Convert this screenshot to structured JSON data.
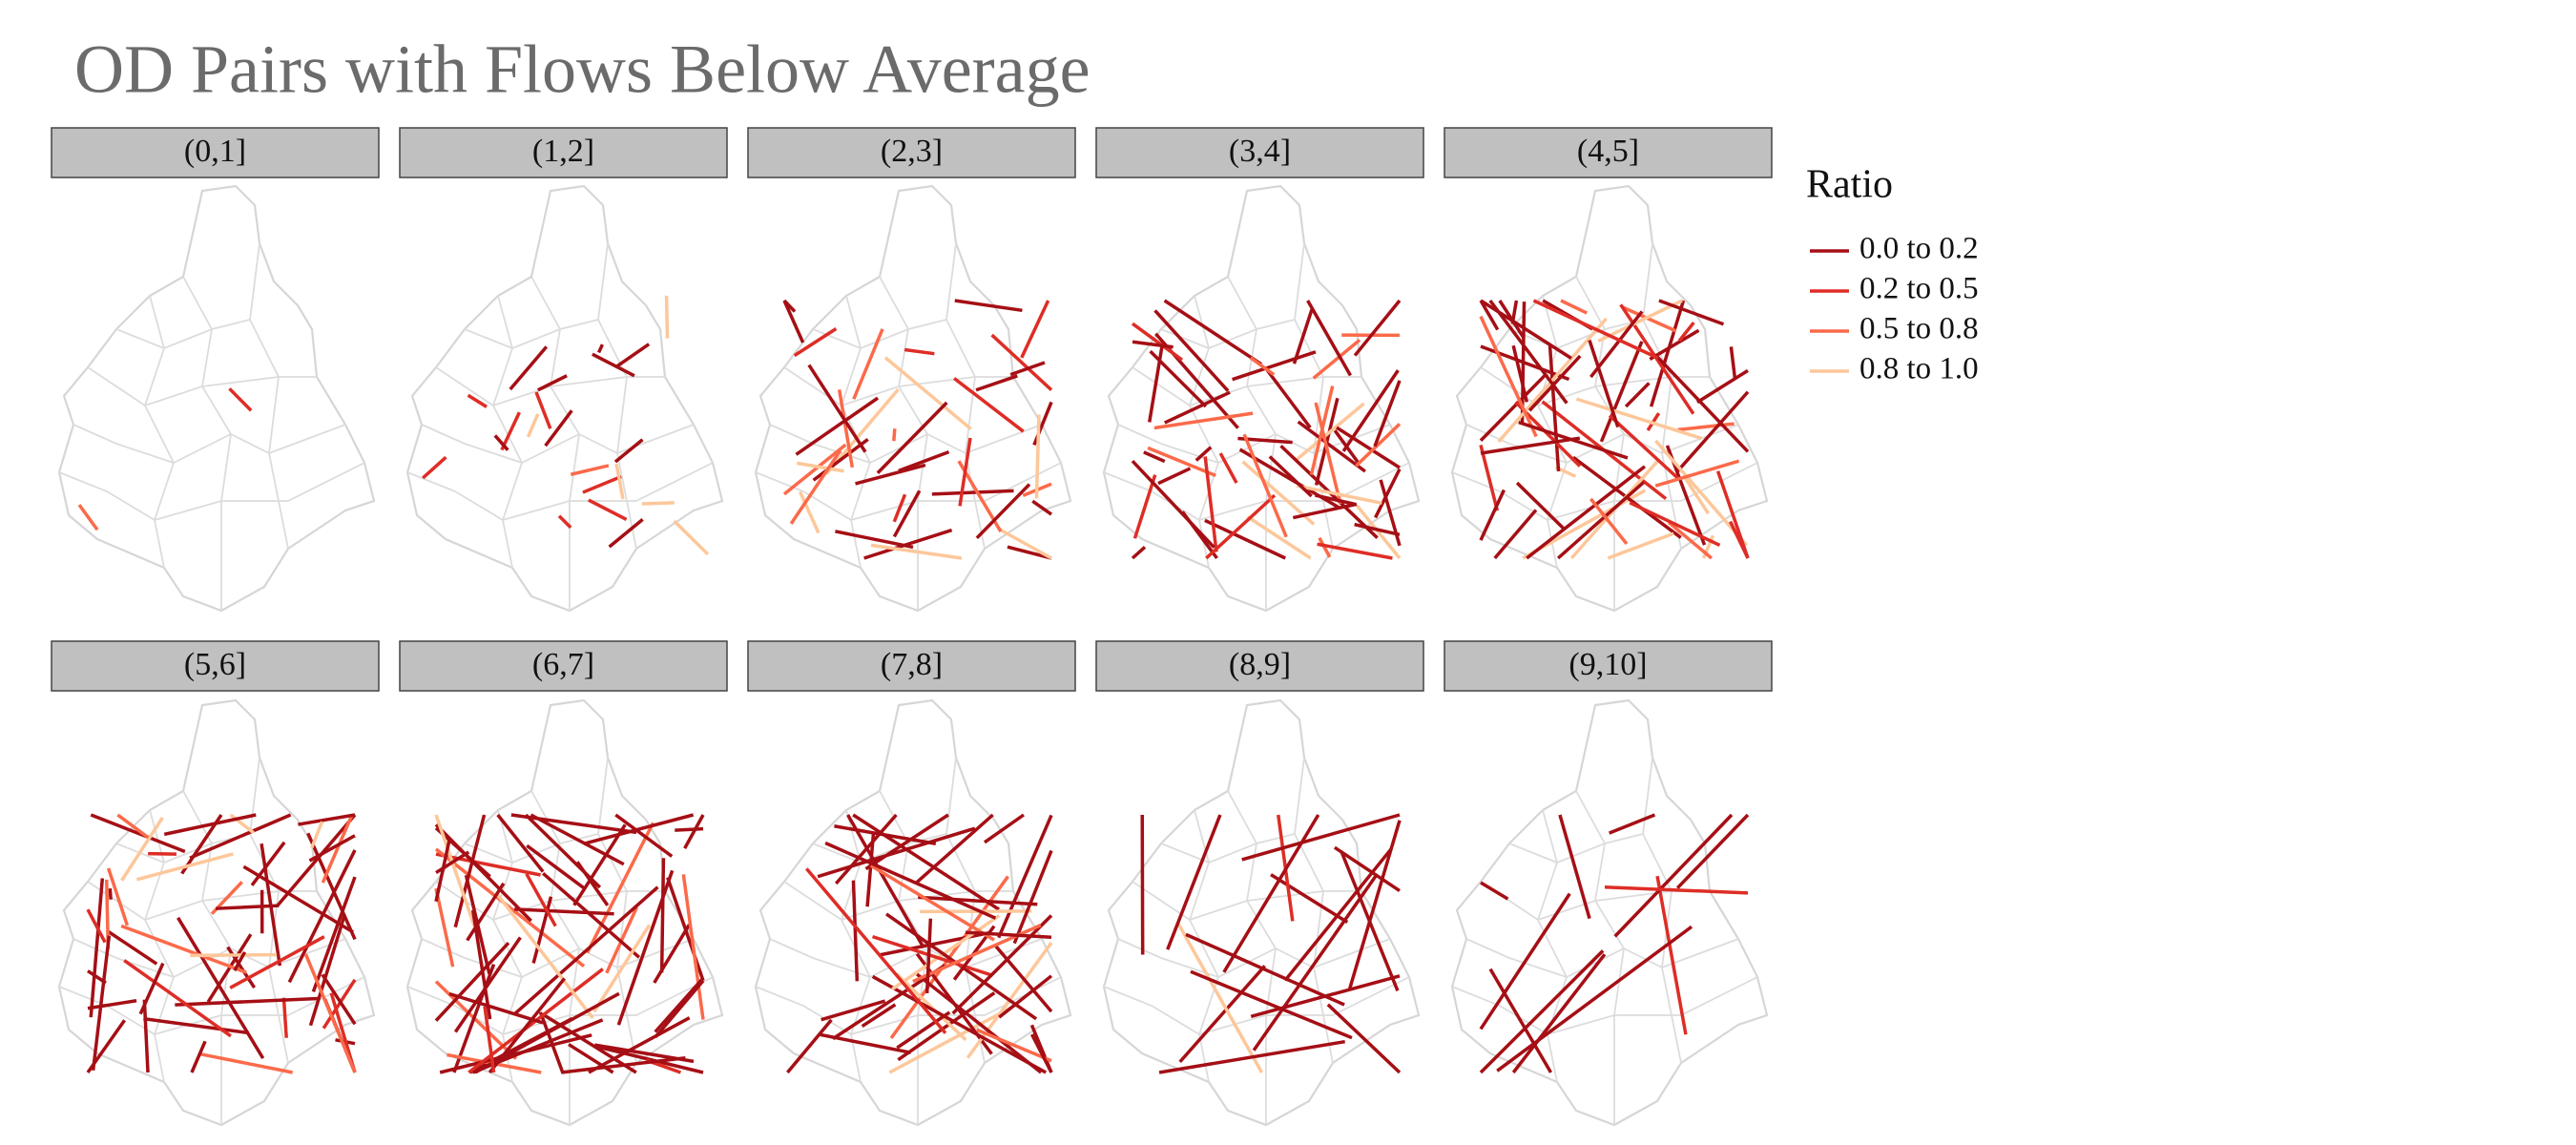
{
  "title": "OD Pairs with Flows Below Average",
  "panels": [
    "(0,1]",
    "(1,2]",
    "(2,3]",
    "(3,4]",
    "(4,5]",
    "(5,6]",
    "(6,7]",
    "(7,8]",
    "(8,9]",
    "(9,10]"
  ],
  "legend": {
    "title": "Ratio",
    "items": [
      {
        "label": "0.0 to 0.2",
        "color": "#a50f15"
      },
      {
        "label": "0.2 to 0.5",
        "color": "#de2d26"
      },
      {
        "label": "0.5 to 0.8",
        "color": "#fb6a4a"
      },
      {
        "label": "0.8 to 1.0",
        "color": "#fdc79a"
      }
    ]
  }
}
